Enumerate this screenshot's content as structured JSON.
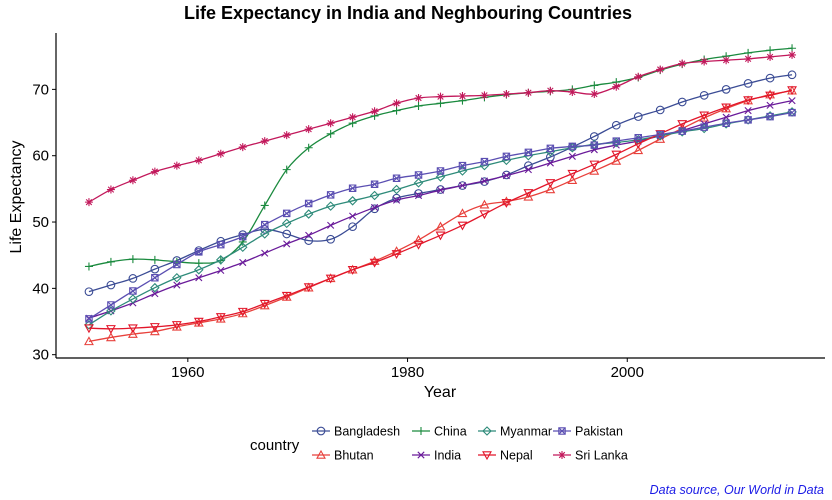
{
  "chart_data": {
    "type": "line",
    "title": "Life Expectancy in India and Neghbouring Countries",
    "xlabel": "Year",
    "ylabel": "Life Expectancy",
    "xlim": [
      1948,
      2018
    ],
    "ylim": [
      29.5,
      78.5
    ],
    "x_ticks": [
      1960,
      1980,
      2000
    ],
    "y_ticks": [
      30,
      40,
      50,
      60,
      70
    ],
    "grid": false,
    "legend_position": "bottom",
    "legend_title": "country",
    "caption": "Data source, Our World in Data",
    "x": [
      1951,
      1953,
      1955,
      1957,
      1959,
      1961,
      1963,
      1965,
      1967,
      1969,
      1971,
      1973,
      1975,
      1977,
      1979,
      1981,
      1983,
      1985,
      1987,
      1989,
      1991,
      1993,
      1995,
      1997,
      1999,
      2001,
      2003,
      2005,
      2007,
      2009,
      2011,
      2013,
      2015
    ],
    "series": [
      {
        "name": "Bangladesh",
        "color": "#3b4c95",
        "marker": "circle",
        "values": [
          39.5,
          40.5,
          41.5,
          42.9,
          44.2,
          45.7,
          47.1,
          48.1,
          48.9,
          48.2,
          47.2,
          47.4,
          49.3,
          52.0,
          53.6,
          54.3,
          54.9,
          55.5,
          56.1,
          57.1,
          58.5,
          59.8,
          61.3,
          62.9,
          64.6,
          65.9,
          66.9,
          68.1,
          69.1,
          70.0,
          70.9,
          71.7,
          72.2
        ]
      },
      {
        "name": "Bhutan",
        "color": "#e8413c",
        "marker": "triangle-up",
        "values": [
          32.0,
          32.6,
          33.1,
          33.5,
          34.2,
          34.8,
          35.4,
          36.2,
          37.4,
          38.7,
          40.1,
          41.5,
          42.8,
          44.1,
          45.6,
          47.3,
          49.3,
          51.3,
          52.6,
          53.1,
          53.8,
          54.9,
          56.3,
          57.7,
          59.2,
          60.8,
          62.5,
          64.1,
          65.7,
          67.1,
          68.3,
          69.2,
          69.8
        ]
      },
      {
        "name": "China",
        "color": "#1a8a3e",
        "marker": "plus",
        "values": [
          43.3,
          44.0,
          44.4,
          44.3,
          44.0,
          43.8,
          44.2,
          47.0,
          52.5,
          57.9,
          61.2,
          63.3,
          64.9,
          66.0,
          66.8,
          67.5,
          67.9,
          68.3,
          68.8,
          69.2,
          69.5,
          69.7,
          70.0,
          70.6,
          71.1,
          71.8,
          72.9,
          73.8,
          74.5,
          75.0,
          75.5,
          75.9,
          76.2
        ]
      },
      {
        "name": "India",
        "color": "#6a1b9a",
        "marker": "x",
        "values": [
          35.5,
          36.6,
          37.8,
          39.2,
          40.5,
          41.6,
          42.7,
          43.9,
          45.3,
          46.7,
          48.0,
          49.5,
          50.9,
          52.2,
          53.3,
          54.0,
          54.8,
          55.5,
          56.2,
          57.0,
          57.9,
          58.9,
          59.9,
          60.9,
          61.6,
          62.2,
          63.0,
          63.8,
          64.8,
          65.8,
          66.8,
          67.6,
          68.3
        ]
      },
      {
        "name": "Myanmar",
        "color": "#2e8b7a",
        "marker": "diamond",
        "values": [
          34.5,
          36.6,
          38.4,
          40.1,
          41.6,
          42.8,
          44.3,
          46.2,
          48.2,
          49.8,
          51.2,
          52.4,
          53.2,
          54.0,
          54.9,
          55.9,
          56.8,
          57.7,
          58.5,
          59.3,
          60.0,
          60.6,
          61.2,
          61.7,
          62.0,
          62.4,
          63.0,
          63.6,
          64.1,
          64.8,
          65.4,
          66.0,
          66.6
        ]
      },
      {
        "name": "Nepal",
        "color": "#e2162a",
        "marker": "triangle-down",
        "values": [
          34.0,
          33.9,
          34.0,
          34.2,
          34.5,
          35.0,
          35.7,
          36.5,
          37.7,
          38.9,
          40.2,
          41.5,
          42.8,
          43.9,
          45.2,
          46.6,
          48.0,
          49.5,
          51.2,
          52.9,
          54.4,
          55.9,
          57.3,
          58.7,
          60.2,
          61.8,
          63.3,
          64.8,
          66.1,
          67.3,
          68.4,
          69.1,
          69.9
        ]
      },
      {
        "name": "Pakistan",
        "color": "#5b4fb2",
        "marker": "square-cross",
        "values": [
          35.4,
          37.5,
          39.6,
          41.6,
          43.6,
          45.5,
          46.6,
          47.8,
          49.6,
          51.3,
          52.8,
          54.1,
          55.1,
          55.7,
          56.6,
          57.1,
          57.7,
          58.5,
          59.1,
          59.9,
          60.5,
          61.1,
          61.4,
          61.6,
          62.2,
          62.7,
          63.2,
          63.7,
          64.3,
          64.9,
          65.4,
          65.9,
          66.5
        ]
      },
      {
        "name": "Sri Lanka",
        "color": "#c2185b",
        "marker": "star",
        "values": [
          53.0,
          54.9,
          56.3,
          57.6,
          58.5,
          59.3,
          60.3,
          61.3,
          62.2,
          63.1,
          64.0,
          64.9,
          65.8,
          66.7,
          67.9,
          68.7,
          68.9,
          69.0,
          69.1,
          69.3,
          69.5,
          69.8,
          69.6,
          69.3,
          70.4,
          71.9,
          73.0,
          73.9,
          74.2,
          74.4,
          74.6,
          74.9,
          75.2
        ]
      }
    ]
  }
}
